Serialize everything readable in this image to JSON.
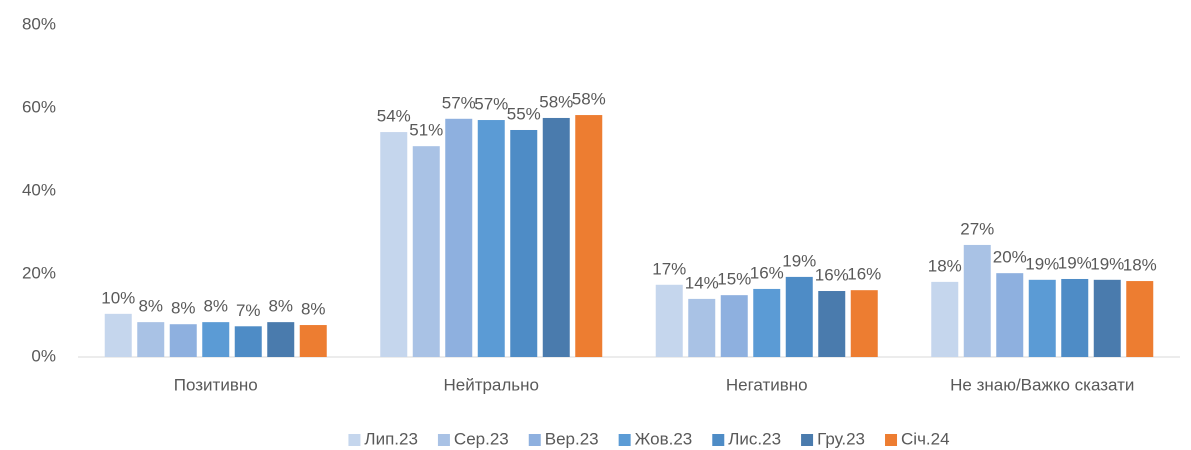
{
  "chart_data": {
    "type": "bar",
    "categories": [
      "Позитивно",
      "Нейтрально",
      "Негативно",
      "Не знаю/Важко сказати"
    ],
    "ylim": [
      0,
      80
    ],
    "yticks": [
      {
        "value": 0,
        "label": "0%"
      },
      {
        "value": 20,
        "label": "20%"
      },
      {
        "value": 40,
        "label": "40%"
      },
      {
        "value": 60,
        "label": "60%"
      },
      {
        "value": 80,
        "label": "80%"
      }
    ],
    "grid": false,
    "legend": "bottom",
    "series": [
      {
        "name": "Лип.23",
        "color": "#c5d6ed",
        "values": [
          10.4,
          54.2,
          17.4,
          18.1
        ],
        "value_labels": [
          "10%",
          "54%",
          "17%",
          "18%"
        ]
      },
      {
        "name": "Сер.23",
        "color": "#a9c2e5",
        "values": [
          8.4,
          50.8,
          14.0,
          27.0
        ],
        "value_labels": [
          "8%",
          "51%",
          "14%",
          "27%"
        ]
      },
      {
        "name": "Вер.23",
        "color": "#8eb0df",
        "values": [
          7.9,
          57.4,
          14.9,
          20.2
        ],
        "value_labels": [
          "8%",
          "57%",
          "15%",
          "20%"
        ]
      },
      {
        "name": "Жов.23",
        "color": "#5b9bd5",
        "values": [
          8.4,
          57.1,
          16.4,
          18.6
        ],
        "value_labels": [
          "8%",
          "57%",
          "16%",
          "19%"
        ]
      },
      {
        "name": "Лис.23",
        "color": "#4e8cc6",
        "values": [
          7.4,
          54.7,
          19.3,
          18.8
        ],
        "value_labels": [
          "7%",
          "55%",
          "19%",
          "19%"
        ]
      },
      {
        "name": "Гру.23",
        "color": "#4a7bad",
        "values": [
          8.4,
          57.6,
          15.9,
          18.6
        ],
        "value_labels": [
          "8%",
          "58%",
          "16%",
          "19%"
        ]
      },
      {
        "name": "Січ.24",
        "color": "#ed7d31",
        "values": [
          7.7,
          58.3,
          16.1,
          18.3
        ],
        "value_labels": [
          "8%",
          "58%",
          "16%",
          "18%"
        ]
      }
    ]
  }
}
